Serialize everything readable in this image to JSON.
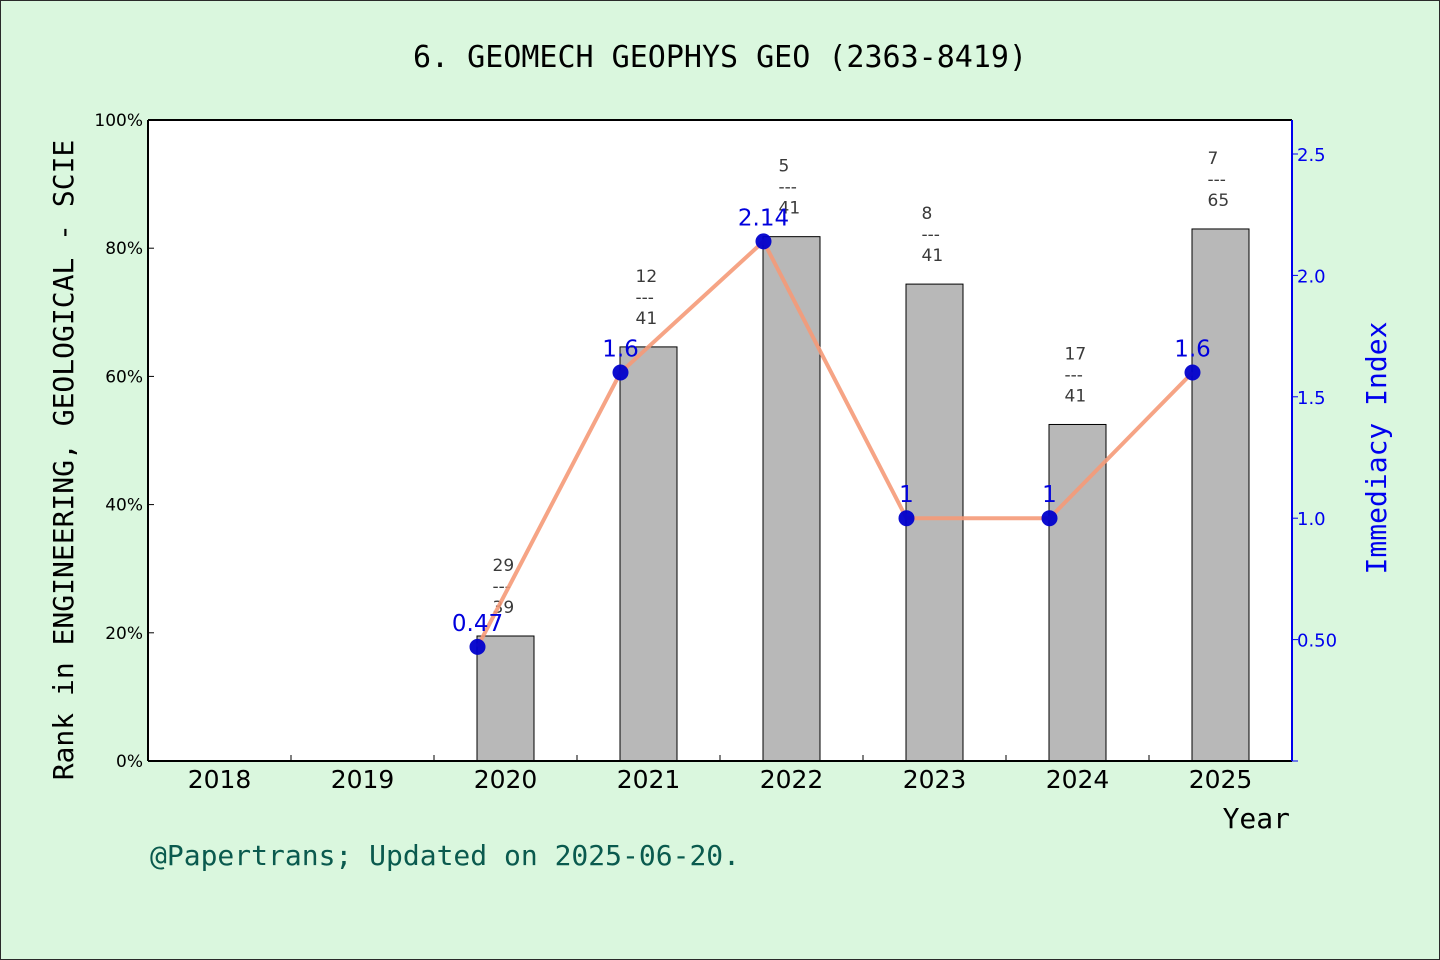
{
  "title": "6. GEOMECH GEOPHYS GEO (2363-8419)",
  "footer": "@Papertrans; Updated on 2025-06-20.",
  "colors": {
    "background": "#daf7de",
    "bar_fill": "#b8b8b8",
    "line": "#f59a78",
    "marker": "#0000cc",
    "right_axis": "#0000ee"
  },
  "chart_data": {
    "type": "bar",
    "title": "6. GEOMECH GEOPHYS GEO (2363-8419)",
    "xlabel": "Year",
    "ylabel": "Rank in ENGINEERING, GEOLOGICAL - SCIE",
    "y2label": "Immediacy Index",
    "categories": [
      "2018",
      "2019",
      "2020",
      "2021",
      "2022",
      "2023",
      "2024",
      "2025"
    ],
    "ylim": [
      0,
      100
    ],
    "yticks": [
      "0%",
      "20%",
      "40%",
      "60%",
      "80%",
      "100%"
    ],
    "y2lim": [
      0,
      2.64
    ],
    "y2ticks": [
      "0.50",
      "1.0",
      "1.5",
      "2.0",
      "2.5"
    ],
    "grid": false,
    "series": [
      {
        "kind": "bar",
        "values": [
          null,
          null,
          19.5,
          64.6,
          81.8,
          74.4,
          52.5,
          83.0
        ],
        "rank_labels": [
          null,
          null,
          {
            "rank": "29",
            "sep": "---",
            "total": "39"
          },
          {
            "rank": "12",
            "sep": "---",
            "total": "41"
          },
          {
            "rank": "5",
            "sep": "---",
            "total": "41"
          },
          {
            "rank": "8",
            "sep": "---",
            "total": "41"
          },
          {
            "rank": "17",
            "sep": "---",
            "total": "41"
          },
          {
            "rank": "7",
            "sep": "---",
            "total": "65"
          }
        ]
      },
      {
        "kind": "line",
        "axis": "right",
        "values": [
          null,
          null,
          0.47,
          1.6,
          2.14,
          1.0,
          1.0,
          1.6
        ],
        "labels": [
          null,
          null,
          "0.47",
          "1.6",
          "2.14",
          "1",
          "1",
          "1.6"
        ]
      }
    ]
  }
}
